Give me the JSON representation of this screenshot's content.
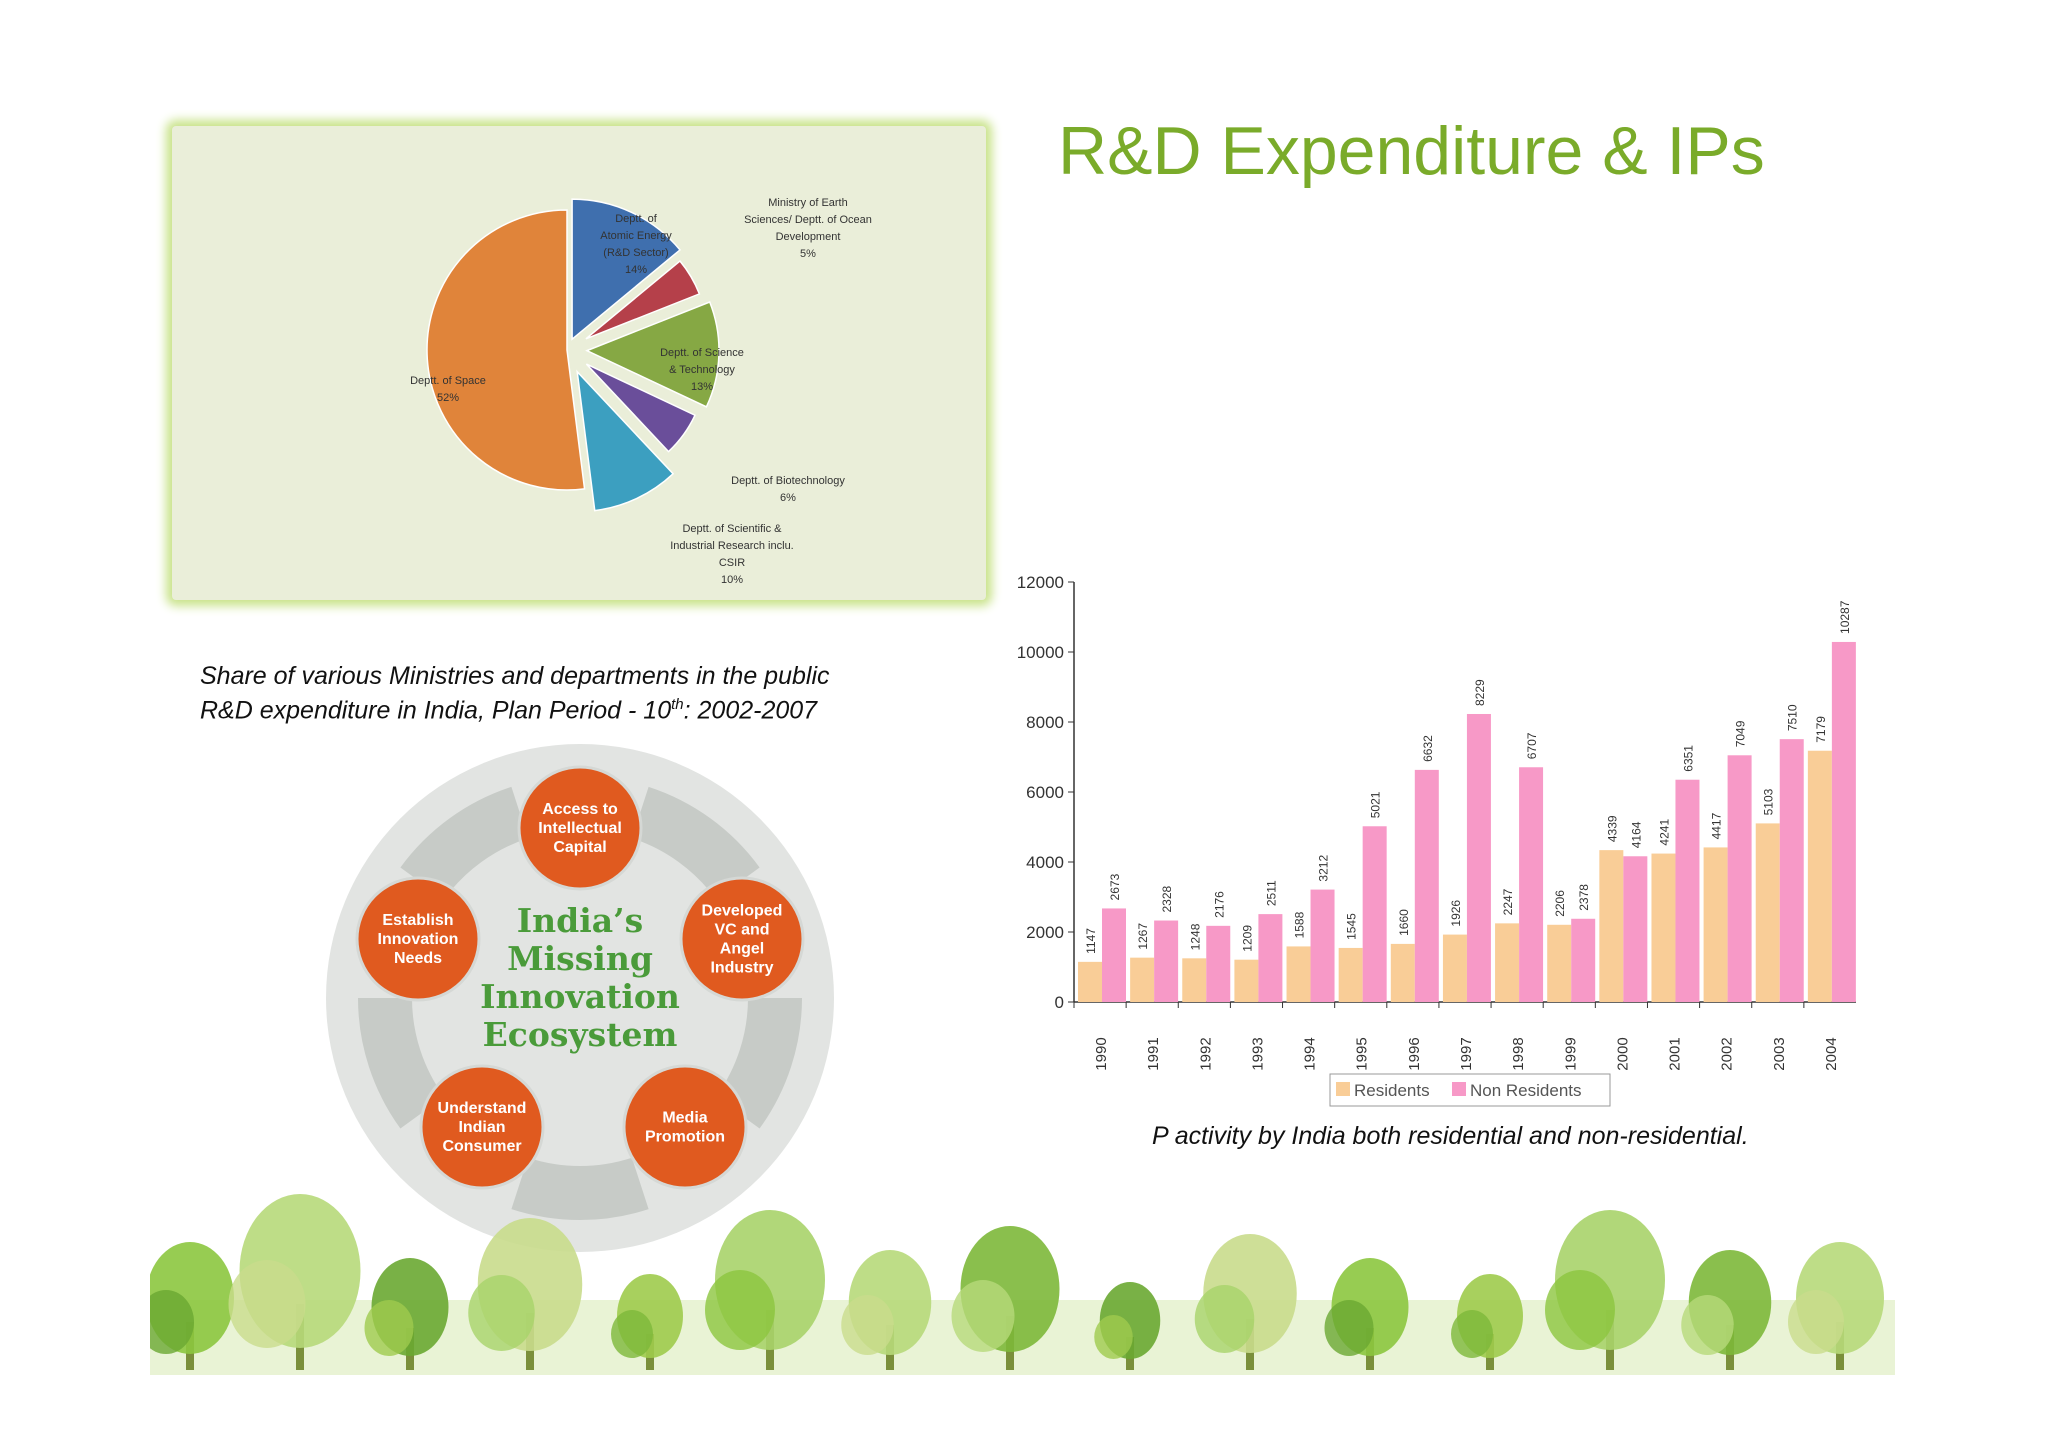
{
  "title": "R&D Expenditure & IPs",
  "pie_caption": {
    "line1": "Share of various Ministries and departments in the public",
    "line2_pre": "R&D expenditure in India, Plan Period - 10",
    "line2_sup": "th",
    "line2_post": ": 2002-2007"
  },
  "bar_caption": "P activity by India both residential and non-residential.",
  "ecosystem": {
    "center": [
      "India’s",
      "Missing",
      "Innovation",
      "Ecosystem"
    ],
    "nodes": [
      {
        "lines": [
          "Access to",
          "Intellectual",
          "Capital"
        ]
      },
      {
        "lines": [
          "Developed",
          "VC and",
          "Angel",
          "Industry"
        ]
      },
      {
        "lines": [
          "Media",
          "Promotion"
        ]
      },
      {
        "lines": [
          "Understand",
          "Indian",
          "Consumer"
        ]
      },
      {
        "lines": [
          "Establish",
          "Innovation",
          "Needs"
        ]
      }
    ]
  },
  "colors": {
    "title": "#7aab2a",
    "residents": "#f9cd97",
    "non_residents": "#f799c7",
    "node": "#e05a1f",
    "center_text": "#4a9b3a"
  },
  "chart_data": [
    {
      "type": "pie",
      "slices": [
        {
          "label": [
            "Deptt. of",
            "Atomic Energy",
            "(R&D Sector)",
            "14%"
          ],
          "value": 14,
          "color": "#3f6fae"
        },
        {
          "label": [
            "Ministry of Earth",
            "Sciences/ Deptt. of Ocean",
            "Development",
            "5%"
          ],
          "value": 5,
          "color": "#b5404a"
        },
        {
          "label": [
            "Deptt. of Science",
            "& Technology",
            "13%"
          ],
          "value": 13,
          "color": "#86a844"
        },
        {
          "label": [
            "Deptt. of Biotechnology",
            "6%"
          ],
          "value": 6,
          "color": "#6a4e9a"
        },
        {
          "label": [
            "Deptt. of Scientific &",
            "Industrial Research inclu.",
            "CSIR",
            "10%"
          ],
          "value": 10,
          "color": "#3c9fc0"
        },
        {
          "label": [
            "Deptt. of Space",
            "52%"
          ],
          "value": 52,
          "color": "#e0843a"
        }
      ]
    },
    {
      "type": "bar",
      "categories": [
        "1990",
        "1991",
        "1992",
        "1993",
        "1994",
        "1995",
        "1996",
        "1997",
        "1998",
        "1999",
        "2000",
        "2001",
        "2002",
        "2003",
        "2004"
      ],
      "series": [
        {
          "name": "Residents",
          "values": [
            1147,
            1267,
            1248,
            1209,
            1588,
            1545,
            1660,
            1926,
            2247,
            2206,
            4339,
            4241,
            4417,
            5103,
            7179
          ]
        },
        {
          "name": "Non Residents",
          "values": [
            2673,
            2328,
            2176,
            2511,
            3212,
            5021,
            6632,
            8229,
            6707,
            2378,
            4164,
            6351,
            7049,
            7510,
            10287
          ]
        }
      ],
      "ylim": [
        0,
        12000
      ],
      "yticks": [
        0,
        2000,
        4000,
        6000,
        8000,
        10000,
        12000
      ],
      "legend": "bottom"
    }
  ]
}
